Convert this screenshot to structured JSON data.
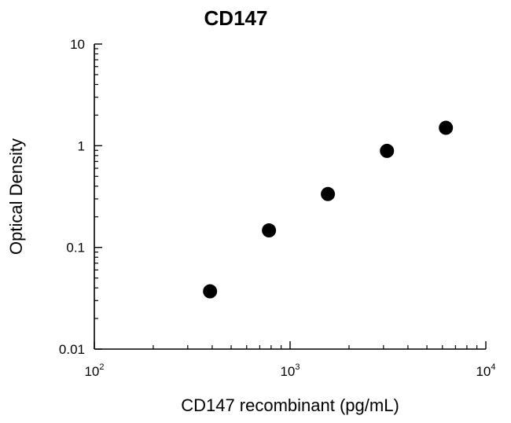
{
  "chart_data": {
    "type": "scatter",
    "title": "CD147",
    "xlabel": "CD147 recombinant (pg/mL)",
    "ylabel": "Optical Density",
    "x_scale": "log",
    "y_scale": "log",
    "xlim": [
      100,
      10000
    ],
    "ylim": [
      0.01,
      10
    ],
    "x_ticks": [
      {
        "base": "10",
        "exp": "2",
        "value": 100
      },
      {
        "base": "10",
        "exp": "3",
        "value": 1000
      },
      {
        "base": "10",
        "exp": "4",
        "value": 10000
      }
    ],
    "y_ticks": [
      {
        "label": "10",
        "value": 10
      },
      {
        "label": "1",
        "value": 1
      },
      {
        "label": "0.1",
        "value": 0.1
      },
      {
        "label": "0.01",
        "value": 0.01
      }
    ],
    "grid": false,
    "legend": "none",
    "marker_color": "#000000",
    "series": [
      {
        "x": [
          390,
          780,
          1560,
          3125,
          6250
        ],
        "y": [
          0.037,
          0.147,
          0.335,
          0.89,
          1.5
        ]
      }
    ]
  }
}
